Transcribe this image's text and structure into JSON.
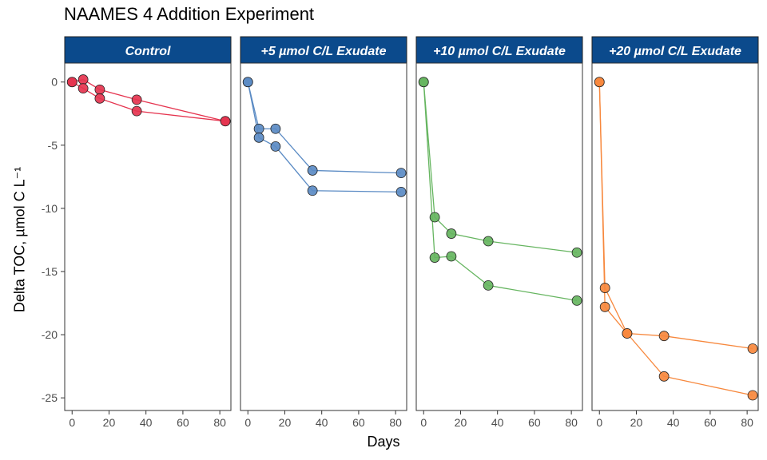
{
  "chart_data": {
    "type": "line",
    "title": "NAAMES 4 Addition Experiment",
    "xlabel": "Days",
    "ylabel": "Delta TOC, µmol C L⁻¹",
    "xlim": [
      -4,
      86
    ],
    "ylim": [
      -26,
      1.5
    ],
    "x_ticks": [
      0,
      20,
      40,
      60,
      80
    ],
    "y_ticks": [
      0,
      -5,
      -10,
      -15,
      -20,
      -25
    ],
    "grid": false,
    "legend": "none",
    "strip_color": "#0B4A8C",
    "panels": [
      {
        "label": "Control",
        "color": "#E5344F",
        "series": [
          {
            "x": [
              0,
              6,
              15,
              35,
              83
            ],
            "y": [
              0,
              0.2,
              -0.6,
              -1.4,
              -3.1
            ]
          },
          {
            "x": [
              0,
              6,
              15,
              35,
              83
            ],
            "y": [
              0,
              -0.5,
              -1.3,
              -2.3,
              -3.1
            ]
          }
        ]
      },
      {
        "label": "+5 µmol C/L Exudate",
        "color": "#5B8BC4",
        "series": [
          {
            "x": [
              0,
              6,
              15,
              35,
              83
            ],
            "y": [
              0,
              -3.7,
              -3.7,
              -7.0,
              -7.2
            ]
          },
          {
            "x": [
              0,
              6,
              15,
              35,
              83
            ],
            "y": [
              0,
              -4.4,
              -5.1,
              -8.6,
              -8.7
            ]
          }
        ]
      },
      {
        "label": "+10 µmol C/L Exudate",
        "color": "#66B560",
        "series": [
          {
            "x": [
              0,
              6,
              15,
              35,
              83
            ],
            "y": [
              0,
              -10.7,
              -12.0,
              -12.6,
              -13.5
            ]
          },
          {
            "x": [
              0,
              6,
              15,
              35,
              83
            ],
            "y": [
              0,
              -13.9,
              -13.8,
              -16.1,
              -17.3
            ]
          }
        ]
      },
      {
        "label": "+20 µmol C/L Exudate",
        "color": "#F7883D",
        "series": [
          {
            "x": [
              0,
              3,
              15,
              35,
              83
            ],
            "y": [
              0,
              -16.3,
              -19.9,
              -20.1,
              -21.1
            ]
          },
          {
            "x": [
              0,
              3,
              15,
              35,
              83
            ],
            "y": [
              0,
              -17.8,
              -19.9,
              -23.3,
              -24.8
            ]
          }
        ]
      }
    ]
  }
}
